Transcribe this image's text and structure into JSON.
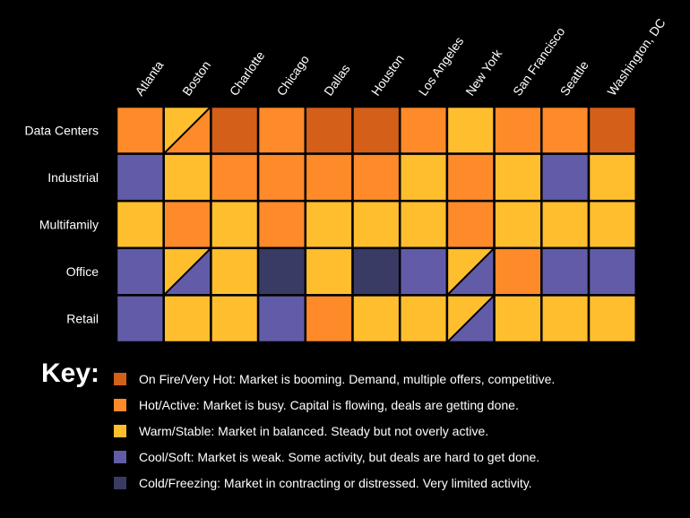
{
  "colors": {
    "on_fire": "#D35F18",
    "hot": "#FE8A2A",
    "warm": "#FFBE2E",
    "cool": "#625CA8",
    "cold": "#393B65"
  },
  "chart_data": {
    "type": "heatmap",
    "title": "",
    "columns": [
      "Atlanta",
      "Boston",
      "Charlotte",
      "Chicago",
      "Dallas",
      "Houston",
      "Los Angeles",
      "New York",
      "San Francisco",
      "Seattle",
      "Washington, DC"
    ],
    "rows": [
      "Data Centers",
      "Industrial",
      "Multifamily",
      "Office",
      "Retail"
    ],
    "cells": [
      [
        [
          "hot"
        ],
        [
          "warm",
          "hot"
        ],
        [
          "on_fire"
        ],
        [
          "hot"
        ],
        [
          "on_fire"
        ],
        [
          "on_fire"
        ],
        [
          "hot"
        ],
        [
          "warm"
        ],
        [
          "hot"
        ],
        [
          "hot"
        ],
        [
          "on_fire"
        ]
      ],
      [
        [
          "cool"
        ],
        [
          "warm"
        ],
        [
          "hot"
        ],
        [
          "hot"
        ],
        [
          "hot"
        ],
        [
          "hot"
        ],
        [
          "warm"
        ],
        [
          "hot"
        ],
        [
          "warm"
        ],
        [
          "cool"
        ],
        [
          "warm"
        ]
      ],
      [
        [
          "warm"
        ],
        [
          "hot"
        ],
        [
          "warm"
        ],
        [
          "hot"
        ],
        [
          "warm"
        ],
        [
          "warm"
        ],
        [
          "warm"
        ],
        [
          "hot"
        ],
        [
          "warm"
        ],
        [
          "warm"
        ],
        [
          "warm"
        ]
      ],
      [
        [
          "cool"
        ],
        [
          "warm",
          "cool"
        ],
        [
          "warm"
        ],
        [
          "cold"
        ],
        [
          "warm"
        ],
        [
          "cold"
        ],
        [
          "cool"
        ],
        [
          "warm",
          "cool"
        ],
        [
          "hot"
        ],
        [
          "cool"
        ],
        [
          "cool"
        ]
      ],
      [
        [
          "cool"
        ],
        [
          "warm"
        ],
        [
          "warm"
        ],
        [
          "cool"
        ],
        [
          "hot"
        ],
        [
          "warm"
        ],
        [
          "warm"
        ],
        [
          "warm",
          "cool"
        ],
        [
          "warm"
        ],
        [
          "warm"
        ],
        [
          "warm"
        ]
      ]
    ],
    "legend": {
      "title": "Key:",
      "items": [
        {
          "key": "on_fire",
          "label": "On Fire/Very Hot: Market is booming. Demand, multiple offers, competitive."
        },
        {
          "key": "hot",
          "label": "Hot/Active: Market is busy. Capital is flowing, deals are getting done."
        },
        {
          "key": "warm",
          "label": "Warm/Stable: Market in balanced. Steady but not overly active."
        },
        {
          "key": "cool",
          "label": "Cool/Soft: Market is weak. Some activity, but deals are hard to get done."
        },
        {
          "key": "cold",
          "label": "Cold/Freezing: Market in contracting or distressed. Very limited activity."
        }
      ]
    }
  }
}
